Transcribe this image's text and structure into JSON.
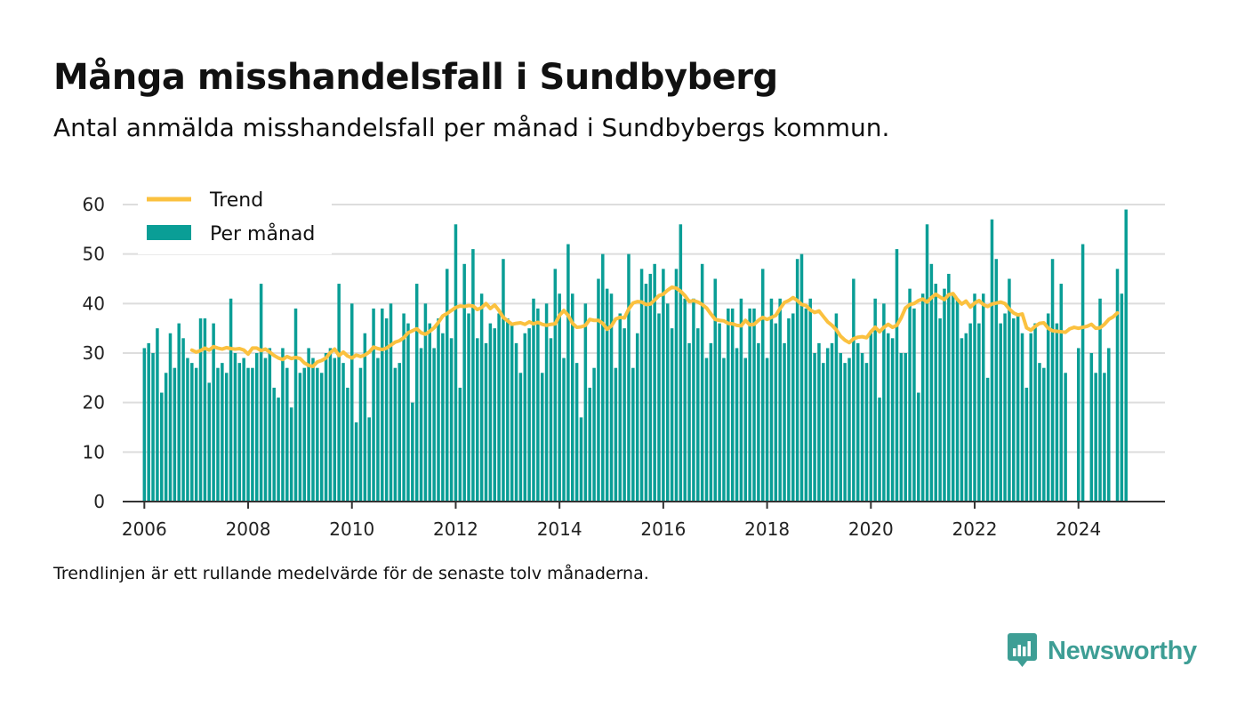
{
  "header": {
    "title": "Många misshandelsfall i Sundbyberg",
    "subtitle": "Antal anmälda misshandelsfall per månad i Sundbybergs kommun."
  },
  "footnote": "Trendlinjen är ett rullande medelvärde för de senaste tolv månaderna.",
  "brand": {
    "name": "Newsworthy"
  },
  "colors": {
    "bars": "#0a9e96",
    "trend": "#fbc13f",
    "brand": "#3e9e95",
    "grid": "#dddddd"
  },
  "chart_data": {
    "type": "bar",
    "title": "Många misshandelsfall i Sundbyberg",
    "subtitle": "Antal anmälda misshandelsfall per månad i Sundbybergs kommun.",
    "xlabel": "",
    "ylabel": "",
    "ylim": [
      0,
      60
    ],
    "yticks": [
      "0",
      "10",
      "20",
      "30",
      "40",
      "50",
      "60"
    ],
    "xticks": [
      "2006",
      "2008",
      "2010",
      "2012",
      "2014",
      "2016",
      "2018",
      "2020",
      "2022",
      "2024"
    ],
    "xlim": [
      "2005-08",
      "2025-09"
    ],
    "grid": true,
    "legend_position": "top-left",
    "legend": [
      "Trend",
      "Per månad"
    ],
    "start_month": "2006-01",
    "series": [
      {
        "name": "Per månad",
        "type": "bar",
        "values": [
          31,
          32,
          30,
          35,
          22,
          26,
          34,
          27,
          36,
          33,
          29,
          28,
          27,
          37,
          37,
          24,
          36,
          27,
          28,
          26,
          41,
          30,
          28,
          29,
          27,
          27,
          30,
          44,
          29,
          31,
          23,
          21,
          31,
          27,
          19,
          39,
          26,
          27,
          31,
          29,
          27,
          26,
          30,
          31,
          29,
          44,
          28,
          23,
          40,
          16,
          27,
          34,
          17,
          39,
          29,
          39,
          37,
          40,
          27,
          28,
          38,
          36,
          20,
          44,
          31,
          40,
          36,
          31,
          37,
          34,
          47,
          33,
          56,
          23,
          48,
          38,
          51,
          33,
          42,
          32,
          36,
          35,
          38,
          49,
          37,
          36,
          32,
          26,
          34,
          35,
          41,
          39,
          26,
          40,
          33,
          47,
          42,
          29,
          52,
          42,
          28,
          17,
          40,
          23,
          27,
          45,
          50,
          43,
          42,
          27,
          38,
          35,
          50,
          27,
          34,
          47,
          44,
          46,
          48,
          38,
          47,
          40,
          35,
          47,
          56,
          41,
          32,
          41,
          35,
          48,
          29,
          32,
          45,
          36,
          29,
          39,
          39,
          31,
          41,
          29,
          39,
          39,
          32,
          47,
          29,
          41,
          36,
          41,
          32,
          37,
          38,
          49,
          50,
          39,
          41,
          30,
          32,
          28,
          31,
          32,
          38,
          30,
          28,
          29,
          45,
          32,
          30,
          28,
          34,
          41,
          21,
          40,
          34,
          33,
          51,
          30,
          30,
          43,
          39,
          22,
          42,
          56,
          48,
          44,
          37,
          43,
          46,
          42,
          41,
          33,
          34,
          36,
          42,
          36,
          42,
          25,
          57,
          49,
          36,
          38,
          45,
          37,
          38,
          34,
          23,
          34,
          36,
          28,
          27,
          38,
          49,
          36,
          44,
          26,
          0,
          0,
          31,
          52,
          0,
          30,
          26,
          41,
          26,
          31,
          0,
          47,
          42,
          59
        ]
      },
      {
        "name": "Trend",
        "type": "line",
        "start_month": "2006-12",
        "values": [
          30.6,
          30.2,
          30.5,
          31.0,
          30.6,
          31.3,
          31.0,
          30.8,
          31.1,
          30.9,
          30.8,
          30.9,
          30.6,
          29.8,
          31.0,
          31.0,
          30.5,
          30.8,
          30.2,
          29.5,
          29.0,
          28.7,
          29.3,
          28.9,
          29.1,
          28.9,
          28.0,
          27.5,
          27.3,
          28.2,
          28.5,
          29.0,
          30.1,
          30.8,
          29.5,
          30.2,
          29.4,
          29.0,
          29.6,
          29.3,
          29.6,
          30.2,
          31.2,
          30.9,
          30.7,
          31.0,
          31.6,
          32.2,
          32.5,
          33.1,
          34.1,
          34.5,
          34.9,
          34.1,
          33.8,
          34.4,
          35.1,
          36.2,
          37.5,
          38.0,
          38.6,
          39.2,
          39.5,
          39.4,
          39.6,
          39.5,
          38.8,
          39.2,
          40.0,
          39.0,
          39.7,
          38.6,
          37.2,
          36.5,
          35.8,
          36.0,
          36.1,
          35.8,
          36.3,
          35.9,
          36.2,
          35.8,
          35.6,
          35.8,
          35.9,
          37.6,
          38.6,
          37.6,
          36.0,
          35.2,
          35.3,
          35.6,
          36.8,
          36.6,
          36.6,
          36.0,
          34.8,
          35.5,
          36.9,
          37.2,
          37.1,
          38.9,
          40.1,
          40.4,
          40.3,
          39.8,
          39.9,
          40.7,
          41.6,
          41.9,
          42.7,
          43.3,
          43.1,
          42.5,
          41.6,
          40.4,
          40.6,
          40.3,
          39.8,
          39.1,
          37.9,
          36.8,
          36.6,
          36.5,
          36.0,
          35.9,
          35.6,
          35.5,
          36.6,
          35.7,
          35.8,
          36.6,
          37.2,
          36.8,
          37.2,
          37.6,
          39.0,
          40.2,
          40.6,
          41.2,
          40.6,
          39.8,
          39.6,
          38.7,
          38.2,
          38.5,
          37.4,
          36.3,
          35.6,
          34.7,
          33.4,
          32.6,
          32.1,
          32.9,
          33.2,
          33.3,
          33.1,
          34.3,
          35.2,
          34.3,
          35.2,
          35.8,
          35.2,
          35.6,
          37.1,
          39.1,
          39.8,
          40.0,
          40.6,
          40.9,
          40.3,
          41.2,
          41.9,
          41.3,
          40.8,
          41.8,
          42.0,
          40.8,
          39.9,
          40.5,
          39.3,
          40.1,
          40.6,
          39.8,
          39.4,
          39.9,
          40.1,
          40.3,
          40.0,
          38.9,
          38.1,
          37.7,
          37.9,
          35.1,
          34.6,
          35.4,
          36.0,
          36.1,
          35.0,
          34.5,
          34.4,
          34.3,
          34.2,
          34.9,
          35.2,
          35.0,
          35.2,
          35.4,
          35.8,
          35.0,
          35.1,
          35.8,
          36.8,
          37.3,
          38.1
        ]
      }
    ]
  }
}
